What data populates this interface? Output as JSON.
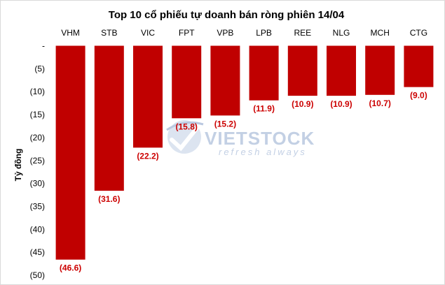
{
  "chart_data": {
    "type": "bar",
    "title": "Top 10 cổ phiếu tự doanh bán ròng phiên 14/04",
    "ylabel": "Tỷ đồng",
    "xlabel": "",
    "categories": [
      "VHM",
      "STB",
      "VIC",
      "FPT",
      "VPB",
      "LPB",
      "REE",
      "NLG",
      "MCH",
      "CTG"
    ],
    "values": [
      -46.6,
      -31.6,
      -22.2,
      -15.8,
      -15.2,
      -11.9,
      -10.9,
      -10.9,
      -10.7,
      -9.0
    ],
    "data_labels": [
      "(46.6)",
      "(31.6)",
      "(22.2)",
      "(15.8)",
      "(15.2)",
      "(11.9)",
      "(10.9)",
      "(10.9)",
      "(10.7)",
      "(9.0)"
    ],
    "ylim": [
      -50,
      0
    ],
    "y_ticks": [
      0,
      -5,
      -10,
      -15,
      -20,
      -25,
      -30,
      -35,
      -40,
      -45,
      -50
    ],
    "y_tick_labels": [
      "-",
      "(5)",
      "(10)",
      "(15)",
      "(20)",
      "(25)",
      "(30)",
      "(35)",
      "(40)",
      "(45)",
      "(50)"
    ],
    "x_axis_position": "top",
    "grid": false,
    "legend": "none",
    "bar_color": "#c00000",
    "label_color": "#cc0000"
  },
  "watermark": {
    "brand": "VIETSTOCK",
    "tagline": "refresh always"
  }
}
